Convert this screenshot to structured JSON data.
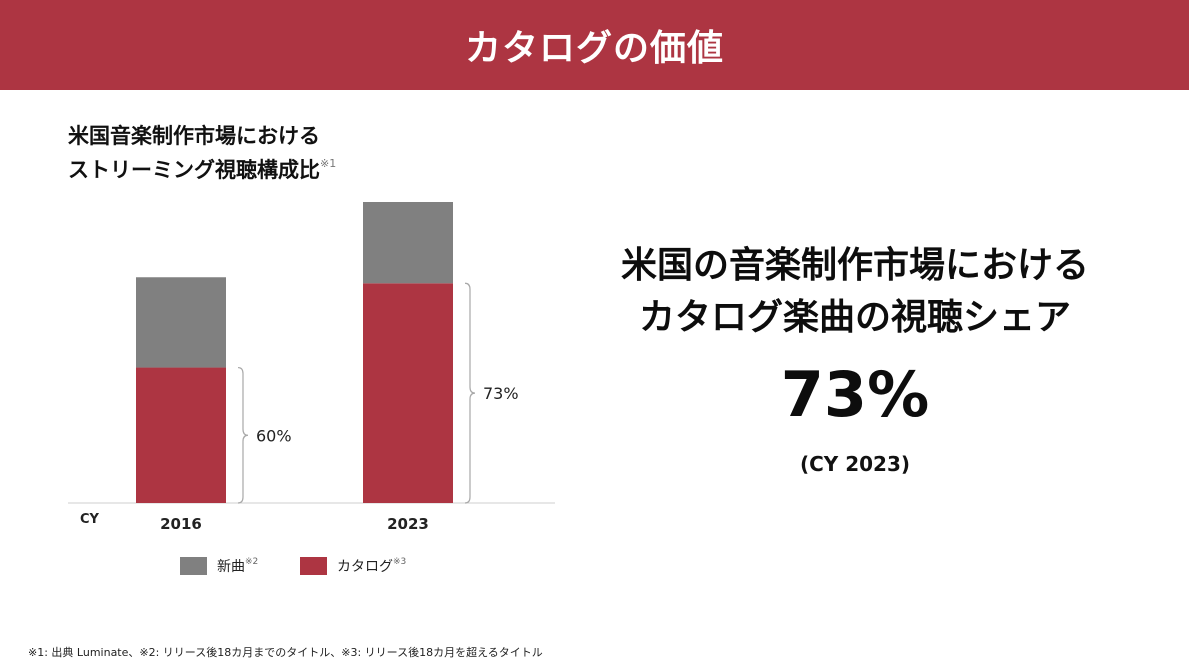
{
  "header": {
    "title": "カタログの価値",
    "background_color": "#ad3542"
  },
  "chart_data": {
    "type": "bar",
    "stacked": true,
    "title_lines": [
      "米国音楽制作市場における",
      "ストリーミング視聴構成比"
    ],
    "title_note": "※1",
    "x_axis_prefix": "CY",
    "categories": [
      "2016",
      "2023"
    ],
    "series": [
      {
        "name": "カタログ",
        "note": "※3",
        "color": "#ad3542",
        "values": [
          60,
          73
        ]
      },
      {
        "name": "新曲",
        "note": "※2",
        "color": "#808080",
        "values": [
          40,
          27
        ]
      }
    ],
    "bar_heights_relative": [
      75,
      100
    ],
    "bracket_labels": [
      "60%",
      "73%"
    ],
    "grid": false,
    "legend_position": "bottom"
  },
  "headline": {
    "line1": "米国の音楽制作市場における",
    "line2": "カタログ楽曲の視聴シェア",
    "value": "73%",
    "period": "(CY 2023)"
  },
  "footnote": "※1: 出典 Luminate、※2: リリース後18カ月までのタイトル、※3: リリース後18カ月を超えるタイトル"
}
